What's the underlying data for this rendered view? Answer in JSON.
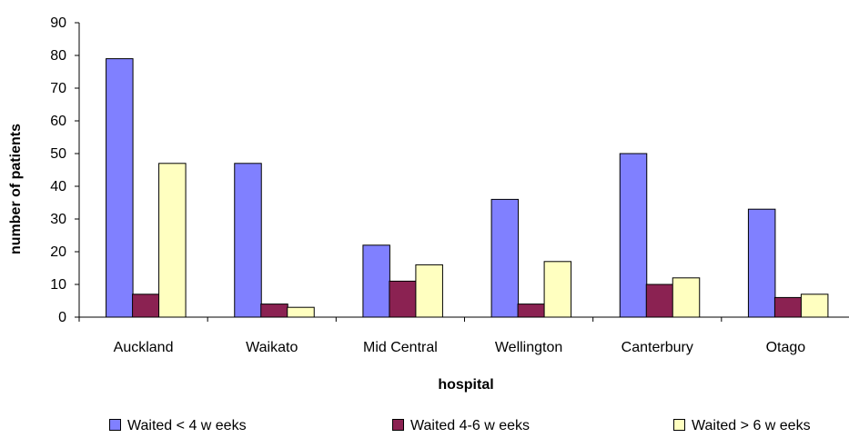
{
  "chart_data": {
    "type": "bar",
    "categories": [
      "Auckland",
      "Waikato",
      "Mid Central",
      "Wellington",
      "Canterbury",
      "Otago"
    ],
    "series": [
      {
        "name": "Waited < 4 w eeks",
        "color": "#8080ff",
        "values": [
          79,
          47,
          22,
          36,
          50,
          33
        ]
      },
      {
        "name": "Waited 4-6 w eeks",
        "color": "#8b2252",
        "values": [
          7,
          4,
          11,
          4,
          10,
          6
        ]
      },
      {
        "name": "Waited > 6 w eeks",
        "color": "#ffffc0",
        "values": [
          47,
          3,
          16,
          17,
          12,
          7
        ]
      }
    ],
    "xlabel": "hospital",
    "ylabel": "number of patients",
    "ylim": [
      0,
      90
    ],
    "yticks": [
      0,
      10,
      20,
      30,
      40,
      50,
      60,
      70,
      80,
      90
    ],
    "grid": false,
    "legend_position": "bottom"
  }
}
